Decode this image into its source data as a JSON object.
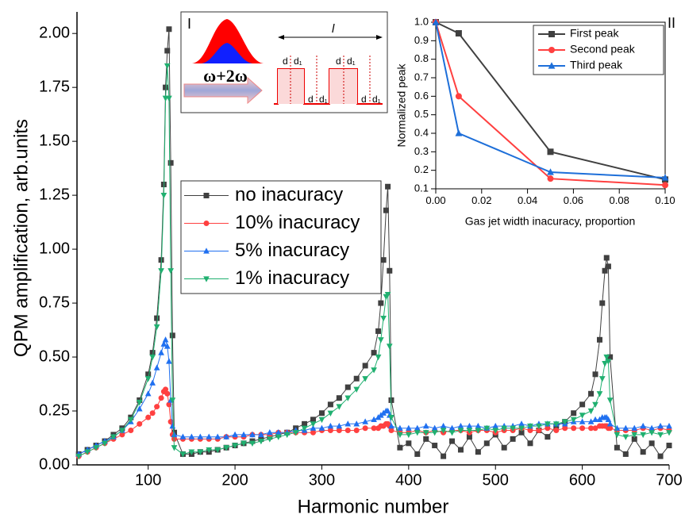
{
  "chart_data": [
    {
      "type": "line",
      "x_label": "Harmonic number",
      "y_label": "QPM amplification, arb.units",
      "xlim": [
        18,
        700
      ],
      "xticks": [
        100,
        200,
        300,
        400,
        500,
        600,
        700
      ],
      "ylim": [
        0,
        2.1
      ],
      "yticks": [
        {
          "value": 0,
          "label": "0.00"
        },
        {
          "value": 0.25,
          "label": "0.25"
        },
        {
          "value": 0.5,
          "label": "0.50"
        },
        {
          "value": 0.75,
          "label": "0.75"
        },
        {
          "value": 1,
          "label": "1.00"
        },
        {
          "value": 1.25,
          "label": "1.25"
        },
        {
          "value": 1.5,
          "label": "1.50"
        },
        {
          "value": 1.75,
          "label": "1.75"
        },
        {
          "value": 2,
          "label": "2.00"
        }
      ],
      "x": [
        20,
        30,
        40,
        50,
        60,
        70,
        80,
        90,
        100,
        105,
        110,
        115,
        118,
        120,
        122,
        124,
        126,
        128,
        130,
        140,
        150,
        160,
        170,
        180,
        190,
        200,
        210,
        220,
        230,
        240,
        250,
        260,
        270,
        280,
        290,
        300,
        310,
        320,
        330,
        340,
        350,
        360,
        365,
        368,
        371,
        374,
        376,
        378,
        380,
        390,
        400,
        410,
        420,
        430,
        440,
        450,
        460,
        470,
        480,
        490,
        500,
        510,
        520,
        530,
        540,
        550,
        560,
        570,
        580,
        590,
        600,
        610,
        615,
        620,
        623,
        626,
        628,
        630,
        632,
        640,
        650,
        660,
        670,
        680,
        690,
        700
      ],
      "series": [
        {
          "name": "no inacuracy",
          "color": "#404040",
          "marker": "square",
          "values": [
            0.05,
            0.07,
            0.09,
            0.11,
            0.14,
            0.17,
            0.22,
            0.3,
            0.42,
            0.52,
            0.68,
            0.95,
            1.3,
            1.75,
            1.92,
            2.02,
            1.4,
            0.6,
            0.15,
            0.05,
            0.05,
            0.06,
            0.06,
            0.07,
            0.08,
            0.09,
            0.1,
            0.11,
            0.12,
            0.13,
            0.14,
            0.15,
            0.17,
            0.19,
            0.21,
            0.24,
            0.28,
            0.31,
            0.36,
            0.4,
            0.46,
            0.52,
            0.62,
            0.75,
            0.95,
            1.18,
            1.29,
            0.9,
            0.3,
            0.08,
            0.1,
            0.05,
            0.12,
            0.09,
            0.04,
            0.11,
            0.07,
            0.13,
            0.06,
            0.1,
            0.14,
            0.08,
            0.12,
            0.15,
            0.1,
            0.16,
            0.13,
            0.18,
            0.2,
            0.24,
            0.28,
            0.33,
            0.42,
            0.58,
            0.75,
            0.9,
            0.96,
            0.92,
            0.5,
            0.08,
            0.05,
            0.12,
            0.06,
            0.1,
            0.04,
            0.09
          ]
        },
        {
          "name": "10% inacuracy",
          "color": "#ff4040",
          "marker": "circle",
          "values": [
            0.04,
            0.06,
            0.08,
            0.1,
            0.12,
            0.14,
            0.16,
            0.19,
            0.22,
            0.24,
            0.27,
            0.31,
            0.34,
            0.35,
            0.33,
            0.28,
            0.2,
            0.14,
            0.12,
            0.12,
            0.12,
            0.12,
            0.12,
            0.12,
            0.13,
            0.13,
            0.13,
            0.14,
            0.14,
            0.14,
            0.15,
            0.15,
            0.15,
            0.15,
            0.15,
            0.16,
            0.16,
            0.16,
            0.16,
            0.16,
            0.17,
            0.17,
            0.17,
            0.18,
            0.18,
            0.19,
            0.19,
            0.18,
            0.16,
            0.15,
            0.15,
            0.16,
            0.15,
            0.16,
            0.15,
            0.16,
            0.16,
            0.15,
            0.16,
            0.16,
            0.15,
            0.16,
            0.16,
            0.17,
            0.16,
            0.16,
            0.17,
            0.16,
            0.17,
            0.17,
            0.17,
            0.17,
            0.17,
            0.18,
            0.18,
            0.18,
            0.18,
            0.17,
            0.17,
            0.16,
            0.16,
            0.16,
            0.17,
            0.16,
            0.17,
            0.16
          ]
        },
        {
          "name": "5% inacuracy",
          "color": "#2070f0",
          "marker": "triangle-up",
          "values": [
            0.05,
            0.07,
            0.09,
            0.11,
            0.13,
            0.16,
            0.2,
            0.26,
            0.33,
            0.38,
            0.45,
            0.52,
            0.56,
            0.58,
            0.55,
            0.48,
            0.3,
            0.18,
            0.14,
            0.13,
            0.13,
            0.13,
            0.13,
            0.13,
            0.13,
            0.14,
            0.14,
            0.14,
            0.14,
            0.15,
            0.15,
            0.15,
            0.16,
            0.16,
            0.17,
            0.17,
            0.18,
            0.18,
            0.19,
            0.19,
            0.2,
            0.21,
            0.22,
            0.23,
            0.24,
            0.25,
            0.25,
            0.23,
            0.18,
            0.17,
            0.17,
            0.17,
            0.18,
            0.17,
            0.18,
            0.17,
            0.18,
            0.18,
            0.18,
            0.17,
            0.18,
            0.18,
            0.18,
            0.19,
            0.18,
            0.19,
            0.19,
            0.19,
            0.19,
            0.2,
            0.2,
            0.2,
            0.21,
            0.21,
            0.22,
            0.22,
            0.22,
            0.21,
            0.19,
            0.17,
            0.17,
            0.17,
            0.18,
            0.17,
            0.18,
            0.18
          ]
        },
        {
          "name": "1% inacuracy",
          "color": "#20b070",
          "marker": "triangle-down",
          "values": [
            0.04,
            0.06,
            0.08,
            0.1,
            0.13,
            0.16,
            0.21,
            0.29,
            0.4,
            0.5,
            0.64,
            0.9,
            1.25,
            1.7,
            1.85,
            1.7,
            0.9,
            0.3,
            0.08,
            0.05,
            0.06,
            0.06,
            0.07,
            0.07,
            0.08,
            0.09,
            0.1,
            0.1,
            0.11,
            0.12,
            0.13,
            0.14,
            0.15,
            0.17,
            0.19,
            0.21,
            0.24,
            0.27,
            0.31,
            0.35,
            0.4,
            0.44,
            0.5,
            0.58,
            0.68,
            0.78,
            0.79,
            0.55,
            0.22,
            0.14,
            0.14,
            0.15,
            0.15,
            0.15,
            0.16,
            0.15,
            0.16,
            0.16,
            0.16,
            0.17,
            0.16,
            0.17,
            0.17,
            0.17,
            0.18,
            0.18,
            0.19,
            0.19,
            0.2,
            0.21,
            0.23,
            0.25,
            0.28,
            0.33,
            0.4,
            0.47,
            0.5,
            0.48,
            0.3,
            0.14,
            0.13,
            0.14,
            0.14,
            0.15,
            0.14,
            0.15
          ]
        }
      ]
    },
    {
      "type": "line",
      "panel_label": "II",
      "x_label": "Gas jet width inacuracy, proportion",
      "y_label": "Normalized peak",
      "xlim": [
        0,
        0.1
      ],
      "xticks": [
        {
          "value": 0,
          "label": "0.00"
        },
        {
          "value": 0.02,
          "label": "0.02"
        },
        {
          "value": 0.04,
          "label": "0.04"
        },
        {
          "value": 0.06,
          "label": "0.06"
        },
        {
          "value": 0.08,
          "label": "0.08"
        },
        {
          "value": 0.1,
          "label": "0.10"
        }
      ],
      "ylim": [
        0.1,
        1
      ],
      "yticks": [
        0.1,
        0.2,
        0.3,
        0.4,
        0.5,
        0.6,
        0.7,
        0.8,
        0.9,
        {
          "value": 1,
          "label": "1.0"
        }
      ],
      "x": [
        0,
        0.01,
        0.05,
        0.1
      ],
      "series": [
        {
          "name": "First peak",
          "color": "#404040",
          "marker": "square",
          "values": [
            1,
            0.94,
            0.3,
            0.15
          ]
        },
        {
          "name": "Second peak",
          "color": "#ff4040",
          "marker": "circle",
          "values": [
            1,
            0.6,
            0.155,
            0.12
          ]
        },
        {
          "name": "Third peak",
          "color": "#1e6fd9",
          "marker": "triangle-up",
          "values": [
            1,
            0.4,
            0.19,
            0.16
          ]
        }
      ]
    }
  ],
  "inset_diagram": {
    "panel_label": "I",
    "beam_label": "ω+2ω",
    "period_label": "l",
    "gap_labels": [
      "d",
      "d₁",
      "d",
      "d₁",
      "d",
      "d₁",
      "d",
      "d₁"
    ]
  }
}
